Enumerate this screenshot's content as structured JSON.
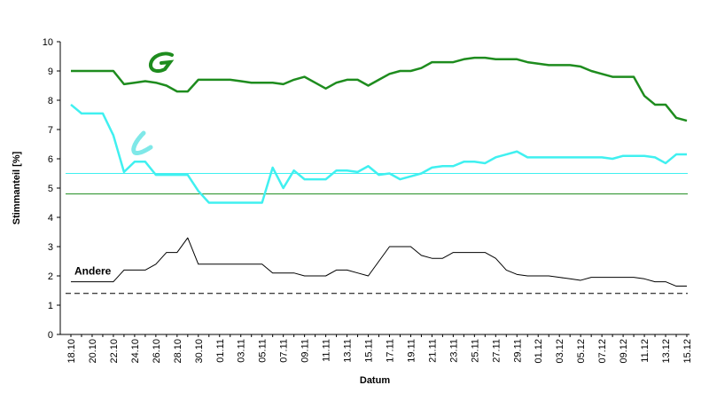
{
  "chart_data": {
    "type": "line",
    "ylabel": "Stimmanteil [%]",
    "xlabel": "Datum",
    "categories": [
      "18.10",
      null,
      "20.10",
      null,
      "22.10",
      null,
      "24.10",
      null,
      "26.10",
      null,
      "28.10",
      null,
      "30.10",
      null,
      "01.11",
      null,
      "03.11",
      null,
      "05.11",
      null,
      "07.11",
      null,
      "09.11",
      null,
      "11.11",
      null,
      "13.11",
      null,
      "15.11",
      null,
      "17.11",
      null,
      "19.11",
      null,
      "21.11",
      null,
      "23.11",
      null,
      "25.11",
      null,
      "27.11",
      null,
      "29.11",
      null,
      "01.12",
      null,
      "03.12",
      null,
      "05.12",
      null,
      "07.12",
      null,
      "09.12",
      null,
      "11.12",
      null,
      "13.12",
      null,
      "15.12"
    ],
    "series": [
      {
        "color": "#1e8c1e",
        "values": [
          9.0,
          9.0,
          9.0,
          9.0,
          9.0,
          8.55,
          8.6,
          8.65,
          8.6,
          8.5,
          8.3,
          8.3,
          8.7,
          8.7,
          8.7,
          8.7,
          8.65,
          8.6,
          8.6,
          8.6,
          8.55,
          8.7,
          8.8,
          8.6,
          8.4,
          8.6,
          8.7,
          8.7,
          8.5,
          8.7,
          8.9,
          9.0,
          9.0,
          9.1,
          9.3,
          9.3,
          9.3,
          9.4,
          9.45,
          9.45,
          9.4,
          9.4,
          9.4,
          9.3,
          9.25,
          9.2,
          9.2,
          9.2,
          9.15,
          9.0,
          8.9,
          8.8,
          8.8,
          8.8,
          8.15,
          7.85,
          7.85,
          7.4,
          7.3
        ]
      },
      {
        "color": "#40f0f0",
        "values": [
          7.85,
          7.55,
          7.55,
          7.55,
          6.8,
          5.55,
          5.9,
          5.9,
          5.45,
          5.45,
          5.45,
          5.45,
          4.9,
          4.5,
          4.5,
          4.5,
          4.5,
          4.5,
          4.5,
          5.7,
          5.0,
          5.6,
          5.3,
          5.3,
          5.3,
          5.6,
          5.6,
          5.55,
          5.75,
          5.45,
          5.5,
          5.3,
          5.4,
          5.5,
          5.7,
          5.75,
          5.75,
          5.9,
          5.9,
          5.85,
          6.05,
          6.15,
          6.25,
          6.05,
          6.05,
          6.05,
          6.05,
          6.05,
          6.05,
          6.05,
          6.05,
          6.0,
          6.1,
          6.1,
          6.1,
          6.05,
          5.85,
          6.15,
          6.15
        ]
      },
      {
        "name": "Andere",
        "color": "#000000",
        "values": [
          1.8,
          1.8,
          1.8,
          1.8,
          1.8,
          2.2,
          2.2,
          2.2,
          2.4,
          2.8,
          2.8,
          3.3,
          2.4,
          2.4,
          2.4,
          2.4,
          2.4,
          2.4,
          2.4,
          2.1,
          2.1,
          2.1,
          2.0,
          2.0,
          2.0,
          2.2,
          2.2,
          2.1,
          2.0,
          2.5,
          3.0,
          3.0,
          3.0,
          2.7,
          2.6,
          2.6,
          2.8,
          2.8,
          2.8,
          2.8,
          2.6,
          2.2,
          2.05,
          2.0,
          2.0,
          2.0,
          1.95,
          1.9,
          1.85,
          1.95,
          1.95,
          1.95,
          1.95,
          1.95,
          1.9,
          1.8,
          1.8,
          1.65,
          1.65
        ]
      }
    ],
    "reference_lines": [
      {
        "value": 5.5,
        "color": "#40f0f0",
        "dashed": false
      },
      {
        "value": 4.8,
        "color": "#1e8c1e",
        "dashed": false
      },
      {
        "value": 1.4,
        "color": "#000000",
        "dashed": true
      }
    ],
    "ylim": [
      0,
      10
    ],
    "yticks": [
      0,
      1,
      2,
      3,
      4,
      5,
      6,
      7,
      8,
      9,
      10
    ],
    "grid": false
  }
}
